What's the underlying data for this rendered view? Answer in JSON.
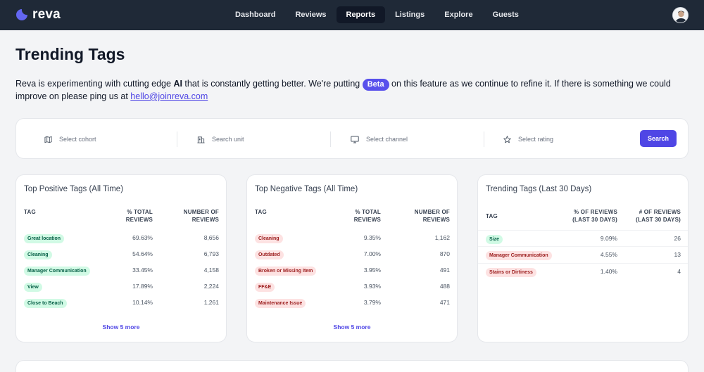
{
  "nav": {
    "brand": "reva",
    "links": [
      "Dashboard",
      "Reviews",
      "Reports",
      "Listings",
      "Explore",
      "Guests"
    ],
    "active": "Reports"
  },
  "page": {
    "title": "Trending Tags",
    "intro_1": "Reva is experimenting with cutting edge ",
    "intro_ai": "AI",
    "intro_2": " that is constantly getting better. We're putting ",
    "beta": "Beta",
    "intro_3": " on this feature as we continue to refine it. If there is something we could improve on please ping us at ",
    "email": "hello@joinreva.com"
  },
  "filters": {
    "cohort": "Select cohort",
    "unit": "Search unit",
    "channel": "Select channel",
    "rating": "Select rating",
    "search": "Search"
  },
  "positive": {
    "title": "Top Positive Tags (All Time)",
    "col_tag": "TAG",
    "col_pct_1": "% TOTAL",
    "col_pct_2": "REVIEWS",
    "col_num_1": "NUMBER OF",
    "col_num_2": "REVIEWS",
    "rows": [
      {
        "tag": "Great location",
        "pct": "69.63%",
        "num": "8,656"
      },
      {
        "tag": "Cleaning",
        "pct": "54.64%",
        "num": "6,793"
      },
      {
        "tag": "Manager Communication",
        "pct": "33.45%",
        "num": "4,158"
      },
      {
        "tag": "View",
        "pct": "17.89%",
        "num": "2,224"
      },
      {
        "tag": "Close to Beach",
        "pct": "10.14%",
        "num": "1,261"
      }
    ],
    "show_more": "Show 5 more"
  },
  "negative": {
    "title": "Top Negative Tags (All Time)",
    "col_tag": "TAG",
    "col_pct_1": "% TOTAL",
    "col_pct_2": "REVIEWS",
    "col_num_1": "NUMBER OF",
    "col_num_2": "REVIEWS",
    "rows": [
      {
        "tag": "Cleaning",
        "pct": "9.35%",
        "num": "1,162"
      },
      {
        "tag": "Outdated",
        "pct": "7.00%",
        "num": "870"
      },
      {
        "tag": "Broken or Missing Item",
        "pct": "3.95%",
        "num": "491"
      },
      {
        "tag": "FF&E",
        "pct": "3.93%",
        "num": "488"
      },
      {
        "tag": "Maintenance Issue",
        "pct": "3.79%",
        "num": "471"
      }
    ],
    "show_more": "Show 5 more"
  },
  "trending": {
    "title": "Trending Tags (Last 30 Days)",
    "col_tag": "TAG",
    "col_pct_1": "% OF REVIEWS",
    "col_pct_2": "(LAST 30 DAYS)",
    "col_num_1": "# OF REVIEWS",
    "col_num_2": "(LAST 30 DAYS)",
    "rows": [
      {
        "tag": "Size",
        "sentiment": "positive",
        "pct": "9.09%",
        "num": "26"
      },
      {
        "tag": "Manager Communication",
        "sentiment": "negative",
        "pct": "4.55%",
        "num": "13"
      },
      {
        "tag": "Stains or Dirtiness",
        "sentiment": "negative",
        "pct": "1.40%",
        "num": "4"
      }
    ]
  },
  "colors": {
    "nav_bg": "#1f2937",
    "accent": "#4f46e5",
    "positive_tag_bg": "#d1fae5",
    "negative_tag_bg": "#fde2e2"
  },
  "icons": {
    "cohort": "map-icon",
    "unit": "building-icon",
    "channel": "monitor-icon",
    "rating": "star-icon"
  }
}
